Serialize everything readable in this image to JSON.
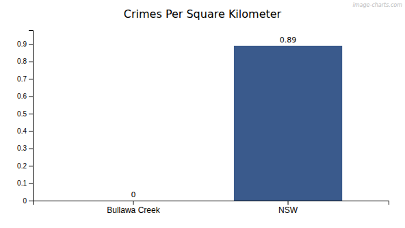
{
  "chart_data": {
    "type": "bar",
    "title": "Crimes Per Square Kilometer",
    "categories": [
      "Bullawa Creek",
      "NSW"
    ],
    "values": [
      0,
      0.89
    ],
    "color": "#3a5a8c",
    "ylim": [
      0,
      0.98
    ],
    "yticks": [
      0,
      0.1,
      0.2,
      0.3,
      0.4,
      0.5,
      0.6,
      0.7,
      0.8,
      0.9
    ],
    "grid": false,
    "data_labels": true,
    "annotations": [
      "image-charts.com"
    ]
  }
}
